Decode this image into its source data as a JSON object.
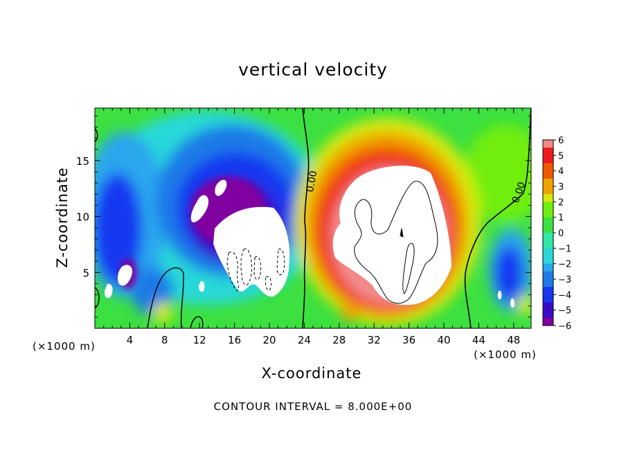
{
  "chart_data": {
    "type": "heatmap",
    "title": "vertical velocity",
    "xlabel": "X-coordinate",
    "ylabel": "Z-coordinate",
    "x_unit": "(×1000 m)",
    "x_ticks": [
      "4",
      "8",
      "12",
      "16",
      "20",
      "24",
      "28",
      "32",
      "36",
      "40",
      "44",
      "48"
    ],
    "x_tick_values": [
      4,
      8,
      12,
      16,
      20,
      24,
      28,
      32,
      36,
      40,
      44,
      48
    ],
    "y_ticks": [
      "5",
      "10",
      "15"
    ],
    "y_tick_values": [
      5,
      10,
      15
    ],
    "xlim": [
      0,
      50
    ],
    "ylim": [
      0,
      19.7
    ],
    "colorbar_ticks": [
      "6",
      "5",
      "4",
      "3",
      "2",
      "1",
      "0",
      "−1",
      "−2",
      "−3",
      "−4",
      "−5",
      "−6"
    ],
    "colorbar_range": [
      -6,
      6
    ],
    "contour_labels": [
      "0.00",
      "0.00"
    ],
    "footer": "CONTOUR INTERVAL = 8.000E+00",
    "features": [
      {
        "kind": "downdraft",
        "center": [
          17,
          8.5
        ],
        "value": -6
      },
      {
        "kind": "downdraft",
        "center": [
          4,
          10
        ],
        "value": -4.5
      },
      {
        "kind": "updraft",
        "center": [
          35,
          9
        ],
        "value": 6
      },
      {
        "kind": "downdraft",
        "center": [
          47,
          5
        ],
        "value": -4.5
      }
    ]
  },
  "colors": {
    "scale": [
      "#8000a0",
      "#3a0cc8",
      "#1838f0",
      "#1e7ae8",
      "#2aa6ee",
      "#28d8d8",
      "#30e8a8",
      "#3ce040",
      "#70ee10",
      "#d6ea10",
      "#f0a200",
      "#f05800",
      "#ee1a1a",
      "#f28888",
      "#ffffff"
    ]
  }
}
